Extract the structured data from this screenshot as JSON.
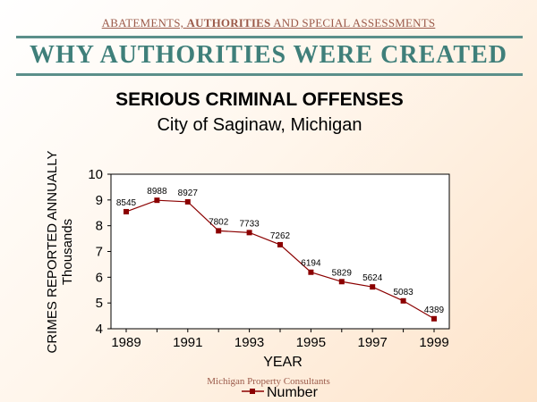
{
  "header": {
    "caption_part1": "ABATEMENTS, ",
    "caption_bold": "AUTHORITIES",
    "caption_part2": " AND SPECIAL ASSESSMENTS",
    "title": "WHY AUTHORITIES WERE CREATED"
  },
  "footer": {
    "text": "Michigan Property Consultants"
  },
  "colors": {
    "accent": "#3f7f7a",
    "series": "#8b0000",
    "caption": "#9b5a4a"
  },
  "chart_data": {
    "type": "line",
    "title": "SERIOUS CRIMINAL OFFENSES",
    "subtitle": "City of Saginaw, Michigan",
    "xlabel": "YEAR",
    "ylabel_line1": "CRIMES REPORTED ANNUALLY",
    "ylabel_line2": "Thousands",
    "x": [
      1989,
      1990,
      1991,
      1992,
      1993,
      1994,
      1995,
      1996,
      1997,
      1998,
      1999
    ],
    "x_tick_labels": [
      "1989",
      "1991",
      "1993",
      "1995",
      "1997",
      "1999"
    ],
    "y_tick_labels": [
      "4",
      "5",
      "6",
      "7",
      "8",
      "9",
      "10"
    ],
    "ylim": [
      4,
      10
    ],
    "grid": false,
    "legend_position": "bottom",
    "series": [
      {
        "name": "Number",
        "values": [
          8.545,
          8.988,
          8.927,
          7.802,
          7.733,
          7.262,
          6.194,
          5.829,
          5.624,
          5.083,
          4.389
        ],
        "data_labels": [
          "8545",
          "8988",
          "8927",
          "7802",
          "7733",
          "7262",
          "6194",
          "5829",
          "5624",
          "5083",
          "4389"
        ]
      }
    ]
  }
}
